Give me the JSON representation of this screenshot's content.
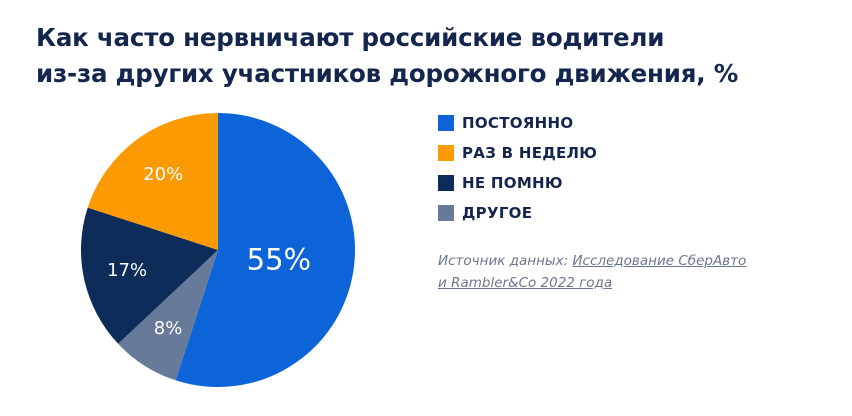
{
  "title": {
    "line1": "Как часто нервничают российские водители",
    "line2": "из-за других участников дорожного движения, %"
  },
  "colors": {
    "text": "#14264d",
    "source_text": "#6b7690",
    "slice_label": "#ffffff"
  },
  "chart_data": {
    "type": "pie",
    "title": "Как часто нервничают российские водители из-за других участников дорожного движения, %",
    "unit": "%",
    "start_angle_deg": 0,
    "direction": "clockwise",
    "slices": [
      {
        "label": "ПОСТОЯННО",
        "value": 55,
        "display": "55%",
        "color": "#0c64d8"
      },
      {
        "label": "ДРУГОЕ",
        "value": 8,
        "display": "8%",
        "color": "#687a99"
      },
      {
        "label": "НЕ ПОМНЮ",
        "value": 17,
        "display": "17%",
        "color": "#0d2c5a"
      },
      {
        "label": "РАЗ В НЕДЕЛЮ",
        "value": 20,
        "display": "20%",
        "color": "#fb9a02"
      }
    ]
  },
  "legend": {
    "placement": "right",
    "items": [
      {
        "label": "ПОСТОЯННО",
        "color": "#0c64d8"
      },
      {
        "label": "РАЗ В НЕДЕЛЮ",
        "color": "#fb9a02"
      },
      {
        "label": "НЕ ПОМНЮ",
        "color": "#0d2c5a"
      },
      {
        "label": "ДРУГОЕ",
        "color": "#687a99"
      }
    ]
  },
  "source": {
    "prefix": "Источник данных: ",
    "link_line1": "Исследование СберАвто",
    "link_line2": "и Rambler&Co 2022 года"
  }
}
